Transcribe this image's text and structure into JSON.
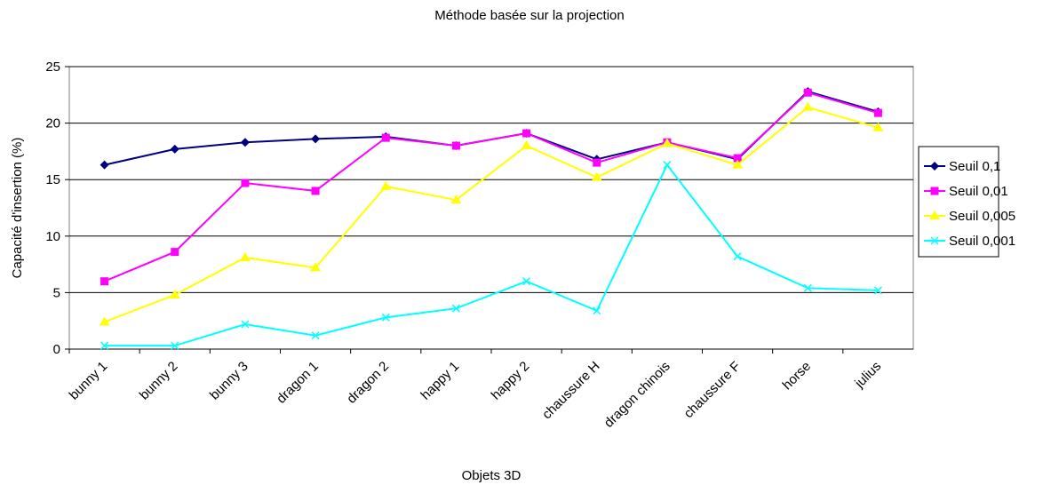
{
  "chart_data": {
    "type": "line",
    "title": "Méthode basée sur la projection",
    "x_label": "Objets 3D",
    "y_label": "Capacité d'insertion (%)",
    "categories": [
      "bunny 1",
      "bunny 2",
      "bunny 3",
      "dragon 1",
      "dragon 2",
      "happy 1",
      "happy 2",
      "chaussure H",
      "dragon chinois",
      "chaussure F",
      "horse",
      "julius"
    ],
    "series": [
      {
        "name": "Seuil 0,1",
        "color": "#000080",
        "marker": "diamond",
        "values": [
          16.3,
          17.7,
          18.3,
          18.6,
          18.8,
          18.0,
          19.1,
          16.8,
          18.3,
          16.8,
          22.8,
          21.0
        ]
      },
      {
        "name": "Seuil 0,01",
        "color": "#ff00ff",
        "marker": "square",
        "values": [
          6.0,
          8.6,
          14.7,
          14.0,
          18.7,
          18.0,
          19.1,
          16.5,
          18.3,
          16.9,
          22.7,
          20.9
        ]
      },
      {
        "name": "Seuil 0,005",
        "color": "#ffff00",
        "marker": "triangle",
        "values": [
          2.4,
          4.8,
          8.1,
          7.2,
          14.4,
          13.2,
          18.0,
          15.2,
          18.2,
          16.3,
          21.4,
          19.6
        ]
      },
      {
        "name": "Seuil 0,001",
        "color": "#00ffff",
        "marker": "x",
        "values": [
          0.3,
          0.3,
          2.2,
          1.2,
          2.8,
          3.6,
          6.0,
          3.4,
          16.3,
          8.2,
          5.4,
          5.2
        ]
      }
    ],
    "ylim": [
      0,
      25
    ],
    "yticks": [
      0,
      5,
      10,
      15,
      20,
      25
    ],
    "grid": true,
    "legend": "right"
  }
}
